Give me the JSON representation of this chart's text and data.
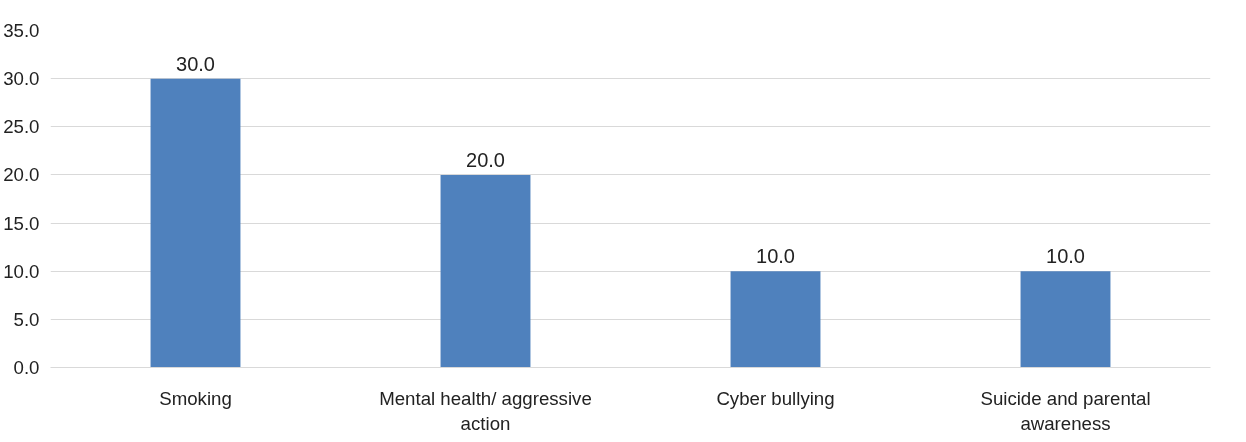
{
  "chart_data": {
    "type": "bar",
    "categories": [
      "Smoking",
      "Mental health/ aggressive action",
      "Cyber bullying",
      "Suicide and parental awareness"
    ],
    "values": [
      30,
      20,
      10,
      10
    ],
    "color": "#4f81bd",
    "value_labels": [
      "30.0",
      "20.0",
      "10.0",
      "10.0"
    ],
    "ylim": [
      0,
      35
    ],
    "yticks": [
      {
        "value": 0,
        "label": "0.0"
      },
      {
        "value": 5,
        "label": "5.0"
      },
      {
        "value": 10,
        "label": "10.0"
      },
      {
        "value": 15,
        "label": "15.0"
      },
      {
        "value": 20,
        "label": "20.0"
      },
      {
        "value": 25,
        "label": "25.0"
      },
      {
        "value": 30,
        "label": "30.0"
      },
      {
        "value": 35,
        "label": "35.0"
      }
    ],
    "grid": "y"
  }
}
